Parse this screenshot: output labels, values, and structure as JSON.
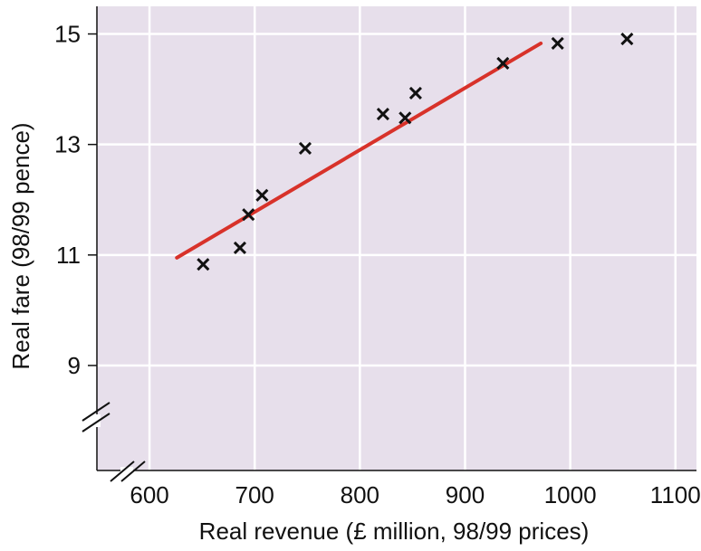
{
  "chart_data": {
    "type": "scatter",
    "title": "",
    "xlabel": "Real revenue (£ million, 98/99 prices)",
    "ylabel": "Real fare (98/99 pence)",
    "xlim": [
      550,
      1120
    ],
    "ylim": [
      7.1,
      15.5
    ],
    "x_ticks": [
      "600",
      "700",
      "800",
      "900",
      "1000",
      "1100"
    ],
    "y_ticks": [
      "9",
      "11",
      "13",
      "15"
    ],
    "x_tick_values": [
      600,
      700,
      800,
      900,
      1000,
      1100
    ],
    "y_tick_values": [
      9,
      11,
      13,
      15
    ],
    "grid": true,
    "axis_breaks": true,
    "marker": "x",
    "points": [
      {
        "x": 651,
        "y": 10.83
      },
      {
        "x": 686,
        "y": 11.13
      },
      {
        "x": 694,
        "y": 11.73
      },
      {
        "x": 707,
        "y": 12.08
      },
      {
        "x": 748,
        "y": 12.93
      },
      {
        "x": 822,
        "y": 13.55
      },
      {
        "x": 843,
        "y": 13.48
      },
      {
        "x": 853,
        "y": 13.93
      },
      {
        "x": 936,
        "y": 14.47
      },
      {
        "x": 988,
        "y": 14.83
      },
      {
        "x": 1054,
        "y": 14.91
      }
    ],
    "trend_line": {
      "x": [
        626,
        972
      ],
      "y": [
        10.95,
        14.83
      ]
    },
    "colors": {
      "plot_background": "#e7dfeb",
      "grid": "#ffffff",
      "marker": "#111111",
      "trend_line": "#d8322a",
      "axis": "#111111"
    }
  }
}
